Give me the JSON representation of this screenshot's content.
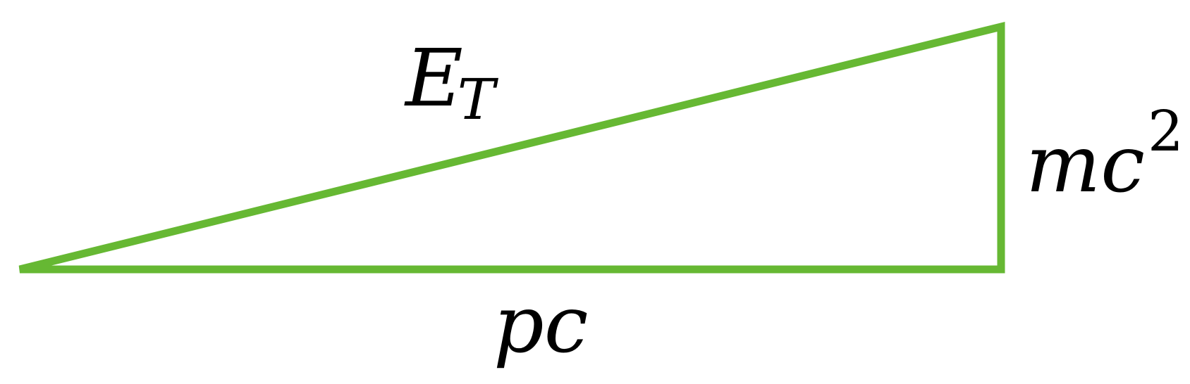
{
  "diagram": {
    "title": "",
    "shape": "right-triangle",
    "stroke_color": "#66b833",
    "label_color": "#000000",
    "labels": {
      "hypotenuse": {
        "main": "E",
        "subscript": "T"
      },
      "base": {
        "main": "pc"
      },
      "leg": {
        "main": "mc",
        "superscript": "2"
      }
    }
  }
}
